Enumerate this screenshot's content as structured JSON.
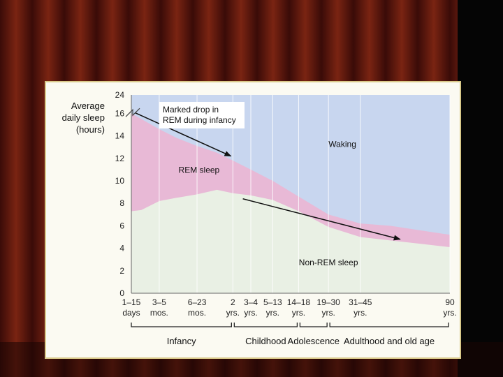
{
  "theme": {
    "curtain_dark": "#3a0b08",
    "curtain_light": "#7a2412",
    "waking_color": "#c8d6ef",
    "rem_color": "#e8b9d6",
    "nonrem_color": "#e9f0e4",
    "card_border": "#d9c98a"
  },
  "chart_data": {
    "type": "area",
    "ylabel_lines": [
      "Average",
      "daily sleep",
      "(hours)"
    ],
    "ylim": [
      0,
      24
    ],
    "yticks": [
      0,
      2,
      4,
      6,
      8,
      10,
      12,
      14,
      16,
      24
    ],
    "y_axis_break": "between 16 and 24",
    "x_categories": [
      {
        "top": "1–15",
        "bottom": "days"
      },
      {
        "top": "3–5",
        "bottom": "mos."
      },
      {
        "top": "6–23",
        "bottom": "mos."
      },
      {
        "top": "2",
        "bottom": "yrs."
      },
      {
        "top": "3–4",
        "bottom": "yrs."
      },
      {
        "top": "5–13",
        "bottom": "yrs."
      },
      {
        "top": "14–18",
        "bottom": "yrs."
      },
      {
        "top": "19–30",
        "bottom": "yrs."
      },
      {
        "top": "31–45",
        "bottom": "yrs."
      },
      {
        "top": "90",
        "bottom": "yrs."
      }
    ],
    "x_positions": [
      0,
      1.4,
      3.3,
      5.1,
      6.0,
      7.1,
      8.4,
      9.9,
      11.5,
      16
    ],
    "series": [
      {
        "name": "Non-REM sleep",
        "values": [
          [
            0,
            7.3
          ],
          [
            0.5,
            7.4
          ],
          [
            1.4,
            8.2
          ],
          [
            2.3,
            8.5
          ],
          [
            3.3,
            8.8
          ],
          [
            4.3,
            9.2
          ],
          [
            5.1,
            8.9
          ],
          [
            6.0,
            8.7
          ],
          [
            7.1,
            8.3
          ],
          [
            8.4,
            7.3
          ],
          [
            9.9,
            5.9
          ],
          [
            11.5,
            5.0
          ],
          [
            13.0,
            4.7
          ],
          [
            14.5,
            4.4
          ],
          [
            16,
            4.1
          ]
        ]
      },
      {
        "name": "REM sleep",
        "values": [
          [
            0,
            16.0
          ],
          [
            1.4,
            14.6
          ],
          [
            2.3,
            13.8
          ],
          [
            3.3,
            13.1
          ],
          [
            4.3,
            12.5
          ],
          [
            5.1,
            11.8
          ],
          [
            6.0,
            11.0
          ],
          [
            7.1,
            10.0
          ],
          [
            8.4,
            8.6
          ],
          [
            9.9,
            7.0
          ],
          [
            11.5,
            6.2
          ],
          [
            13.0,
            6.0
          ],
          [
            14.5,
            5.6
          ],
          [
            16,
            5.2
          ]
        ]
      },
      {
        "name": "Waking",
        "values": []
      }
    ],
    "annotations": [
      {
        "text_lines": [
          "Marked drop in",
          "REM during infancy"
        ],
        "from": [
          0.2,
          16.2
        ],
        "to": [
          5.0,
          12.2
        ]
      },
      {
        "text_lines": [],
        "from": [
          5.6,
          8.4
        ],
        "to": [
          13.5,
          4.8
        ]
      }
    ],
    "region_labels": {
      "waking": "Waking",
      "rem": "REM sleep",
      "nonrem": "Non-REM sleep"
    },
    "stages": [
      {
        "label": "Infancy",
        "start": 0,
        "end": 5.1
      },
      {
        "label": "Childhood",
        "start": 5.1,
        "end": 8.4
      },
      {
        "label": "Adolescence",
        "start": 8.4,
        "end": 9.9
      },
      {
        "label": "Adulthood and old age",
        "start": 9.9,
        "end": 16
      }
    ]
  }
}
